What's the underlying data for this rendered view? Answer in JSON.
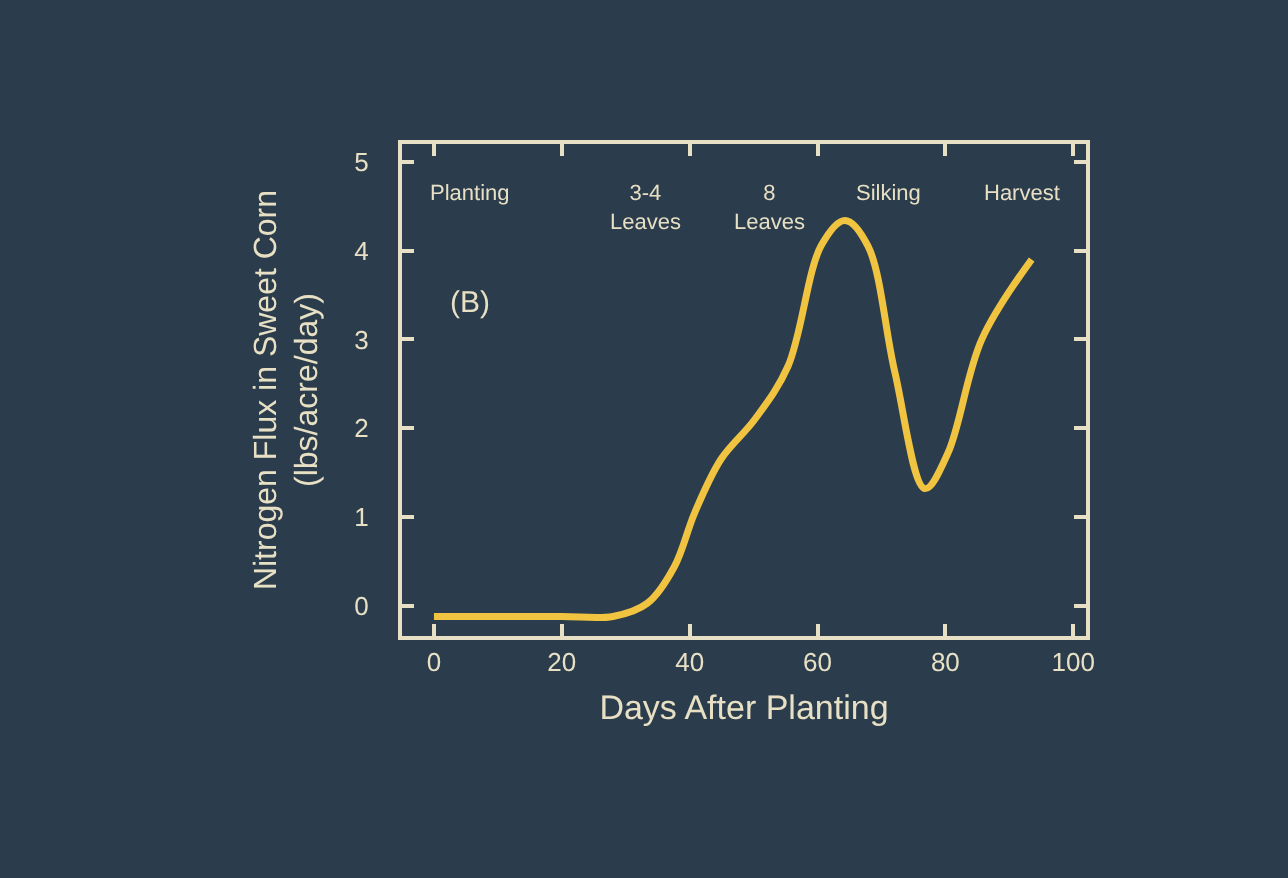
{
  "chart_data": {
    "type": "line",
    "xlabel": "Days After Planting",
    "ylabel": "Nitrogen Flux in Sweet Corn\n(lbs/acre/day)",
    "x": [
      0,
      10,
      20,
      28,
      33.4,
      37.6,
      40.8,
      44.9,
      50.2,
      55.4,
      60.6,
      64.3,
      67.9,
      72.1,
      76.8,
      80.4,
      85.7,
      93.5
    ],
    "series": [
      {
        "color": "#f0c440",
        "values": [
          -0.12,
          -0.12,
          -0.12,
          -0.12,
          0.03,
          0.44,
          1.05,
          1.65,
          2.1,
          2.7,
          4.06,
          4.34,
          4.05,
          2.63,
          1.32,
          1.72,
          3.0,
          3.9
        ]
      }
    ],
    "xlim": [
      -5,
      102
    ],
    "ylim": [
      -0.34,
      5.2
    ],
    "xticks": [
      0,
      20,
      40,
      60,
      80,
      100
    ],
    "yticks": [
      0,
      1,
      2,
      3,
      4,
      5
    ],
    "grid": false,
    "marker": "none",
    "line_style": "solid",
    "annotations": [
      "Planting",
      "3-4\nLeaves",
      "8\nLeaves",
      "Silking",
      "Harvest",
      "(B)"
    ]
  }
}
